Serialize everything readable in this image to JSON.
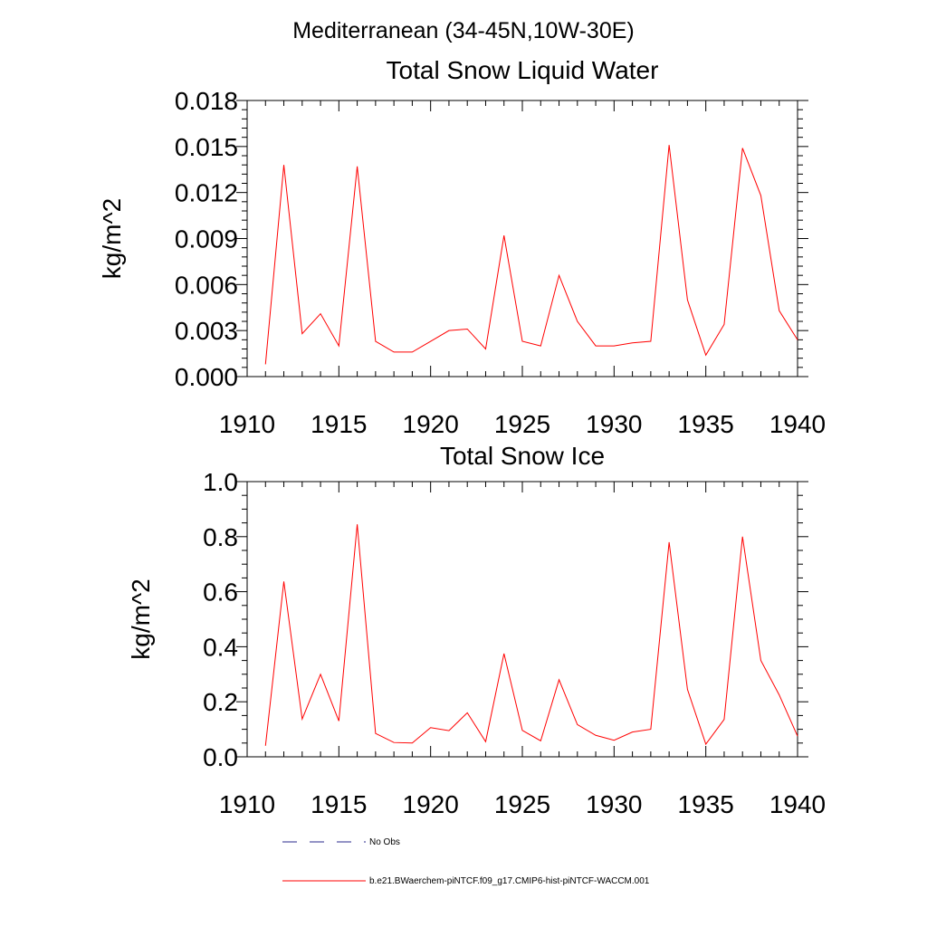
{
  "figure": {
    "title": "Mediterranean (34-45N,10W-30E)"
  },
  "legend": {
    "obs_label": "No Obs",
    "obs_color": "#2a2a8c",
    "model_label": "b.e21.BWaerchem-piNTCF.f09_g17.CMIP6-hist-piNTCF-WACCM.001",
    "model_color": "#ff0000"
  },
  "chart_data": [
    {
      "type": "line",
      "title": "Total Snow Liquid Water",
      "xlabel": "",
      "ylabel": "kg/m^2",
      "xlim": [
        1910,
        1940
      ],
      "ylim": [
        0,
        0.018
      ],
      "xticks": [
        1910,
        1915,
        1920,
        1925,
        1930,
        1935,
        1940
      ],
      "xtick_labels": [
        "1910",
        "1915",
        "1920",
        "1925",
        "1930",
        "1935",
        "1940"
      ],
      "yticks": [
        0,
        0.003,
        0.006,
        0.009,
        0.012,
        0.015,
        0.018
      ],
      "ytick_labels": [
        "0.000",
        "0.003",
        "0.006",
        "0.009",
        "0.012",
        "0.015",
        "0.018"
      ],
      "x": [
        1911,
        1912,
        1913,
        1914,
        1915,
        1916,
        1917,
        1918,
        1919,
        1920,
        1921,
        1922,
        1923,
        1924,
        1925,
        1926,
        1927,
        1928,
        1929,
        1930,
        1931,
        1932,
        1933,
        1934,
        1935,
        1936,
        1937,
        1938,
        1939,
        1940
      ],
      "series": [
        {
          "color": "#ff0000",
          "values": [
            0.0008,
            0.0138,
            0.0028,
            0.0041,
            0.002,
            0.0137,
            0.0023,
            0.0016,
            0.0016,
            0.0023,
            0.003,
            0.0031,
            0.0018,
            0.0092,
            0.0023,
            0.002,
            0.0066,
            0.0036,
            0.002,
            0.002,
            0.0022,
            0.0023,
            0.0151,
            0.005,
            0.0014,
            0.0034,
            0.0149,
            0.0118,
            0.0043,
            0.0024
          ]
        }
      ]
    },
    {
      "type": "line",
      "title": "Total Snow Ice",
      "xlabel": "",
      "ylabel": "kg/m^2",
      "xlim": [
        1910,
        1940
      ],
      "ylim": [
        0,
        1.0
      ],
      "xticks": [
        1910,
        1915,
        1920,
        1925,
        1930,
        1935,
        1940
      ],
      "xtick_labels": [
        "1910",
        "1915",
        "1920",
        "1925",
        "1930",
        "1935",
        "1940"
      ],
      "yticks": [
        0,
        0.2,
        0.4,
        0.6,
        0.8,
        1.0
      ],
      "ytick_labels": [
        "0.0",
        "0.2",
        "0.4",
        "0.6",
        "0.8",
        "1.0"
      ],
      "x": [
        1911,
        1912,
        1913,
        1914,
        1915,
        1916,
        1917,
        1918,
        1919,
        1920,
        1921,
        1922,
        1923,
        1924,
        1925,
        1926,
        1927,
        1928,
        1929,
        1930,
        1931,
        1932,
        1933,
        1934,
        1935,
        1936,
        1937,
        1938,
        1939,
        1940
      ],
      "series": [
        {
          "color": "#ff0000",
          "values": [
            0.04,
            0.637,
            0.137,
            0.3,
            0.13,
            0.845,
            0.085,
            0.052,
            0.05,
            0.106,
            0.095,
            0.16,
            0.055,
            0.375,
            0.096,
            0.058,
            0.28,
            0.117,
            0.078,
            0.06,
            0.09,
            0.1,
            0.78,
            0.245,
            0.046,
            0.136,
            0.8,
            0.35,
            0.225,
            0.075
          ]
        }
      ]
    }
  ]
}
